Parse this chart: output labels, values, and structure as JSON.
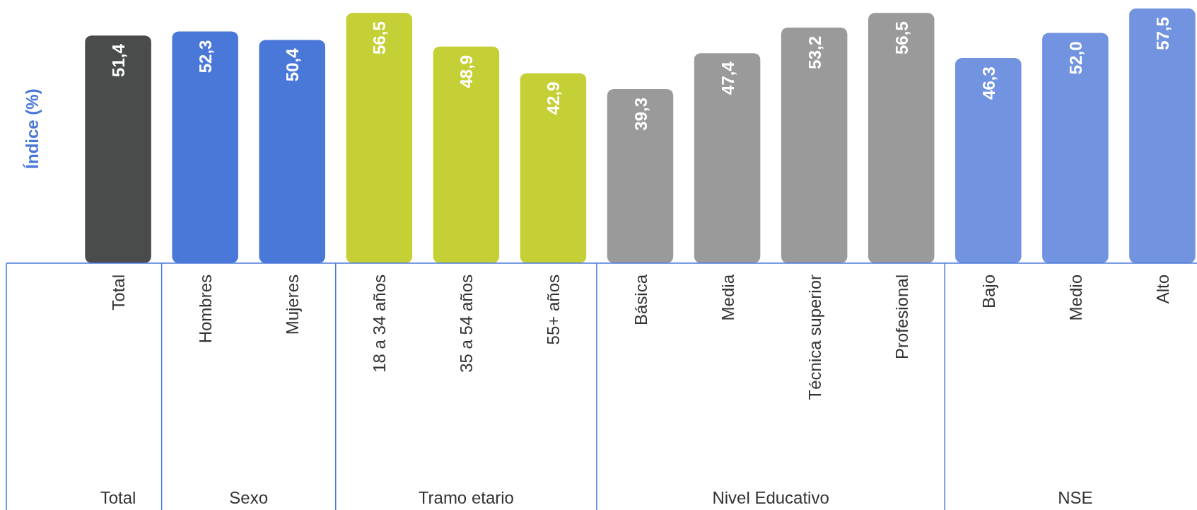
{
  "chart_data": {
    "type": "bar",
    "ylabel": "Índice (%)",
    "categories": [
      "Total",
      "Hombres",
      "Mujeres",
      "18 a 34 años",
      "35 a 54 años",
      "55+ años",
      "Básica",
      "Media",
      "Técnica superior",
      "Profesional",
      "Bajo",
      "Medio",
      "Alto"
    ],
    "values": [
      51.4,
      52.3,
      50.4,
      56.5,
      48.9,
      42.9,
      39.3,
      47.4,
      53.2,
      56.5,
      46.3,
      52.0,
      57.5
    ],
    "value_labels": [
      "51,4",
      "52,3",
      "50,4",
      "56,5",
      "48,9",
      "42,9",
      "39,3",
      "47,4",
      "53,2",
      "56,5",
      "46,3",
      "52,0",
      "57,5"
    ],
    "colors": [
      "#4a4b4b",
      "#4a78d8",
      "#4a78d8",
      "#c5cf36",
      "#c5cf36",
      "#c5cf36",
      "#9a9a9a",
      "#9a9a9a",
      "#9a9a9a",
      "#9a9a9a",
      "#7294e0",
      "#7294e0",
      "#7294e0"
    ],
    "annotations": [
      "Total",
      "Sexo",
      "Tramo etario",
      "Nivel Educativo",
      "NSE"
    ]
  }
}
